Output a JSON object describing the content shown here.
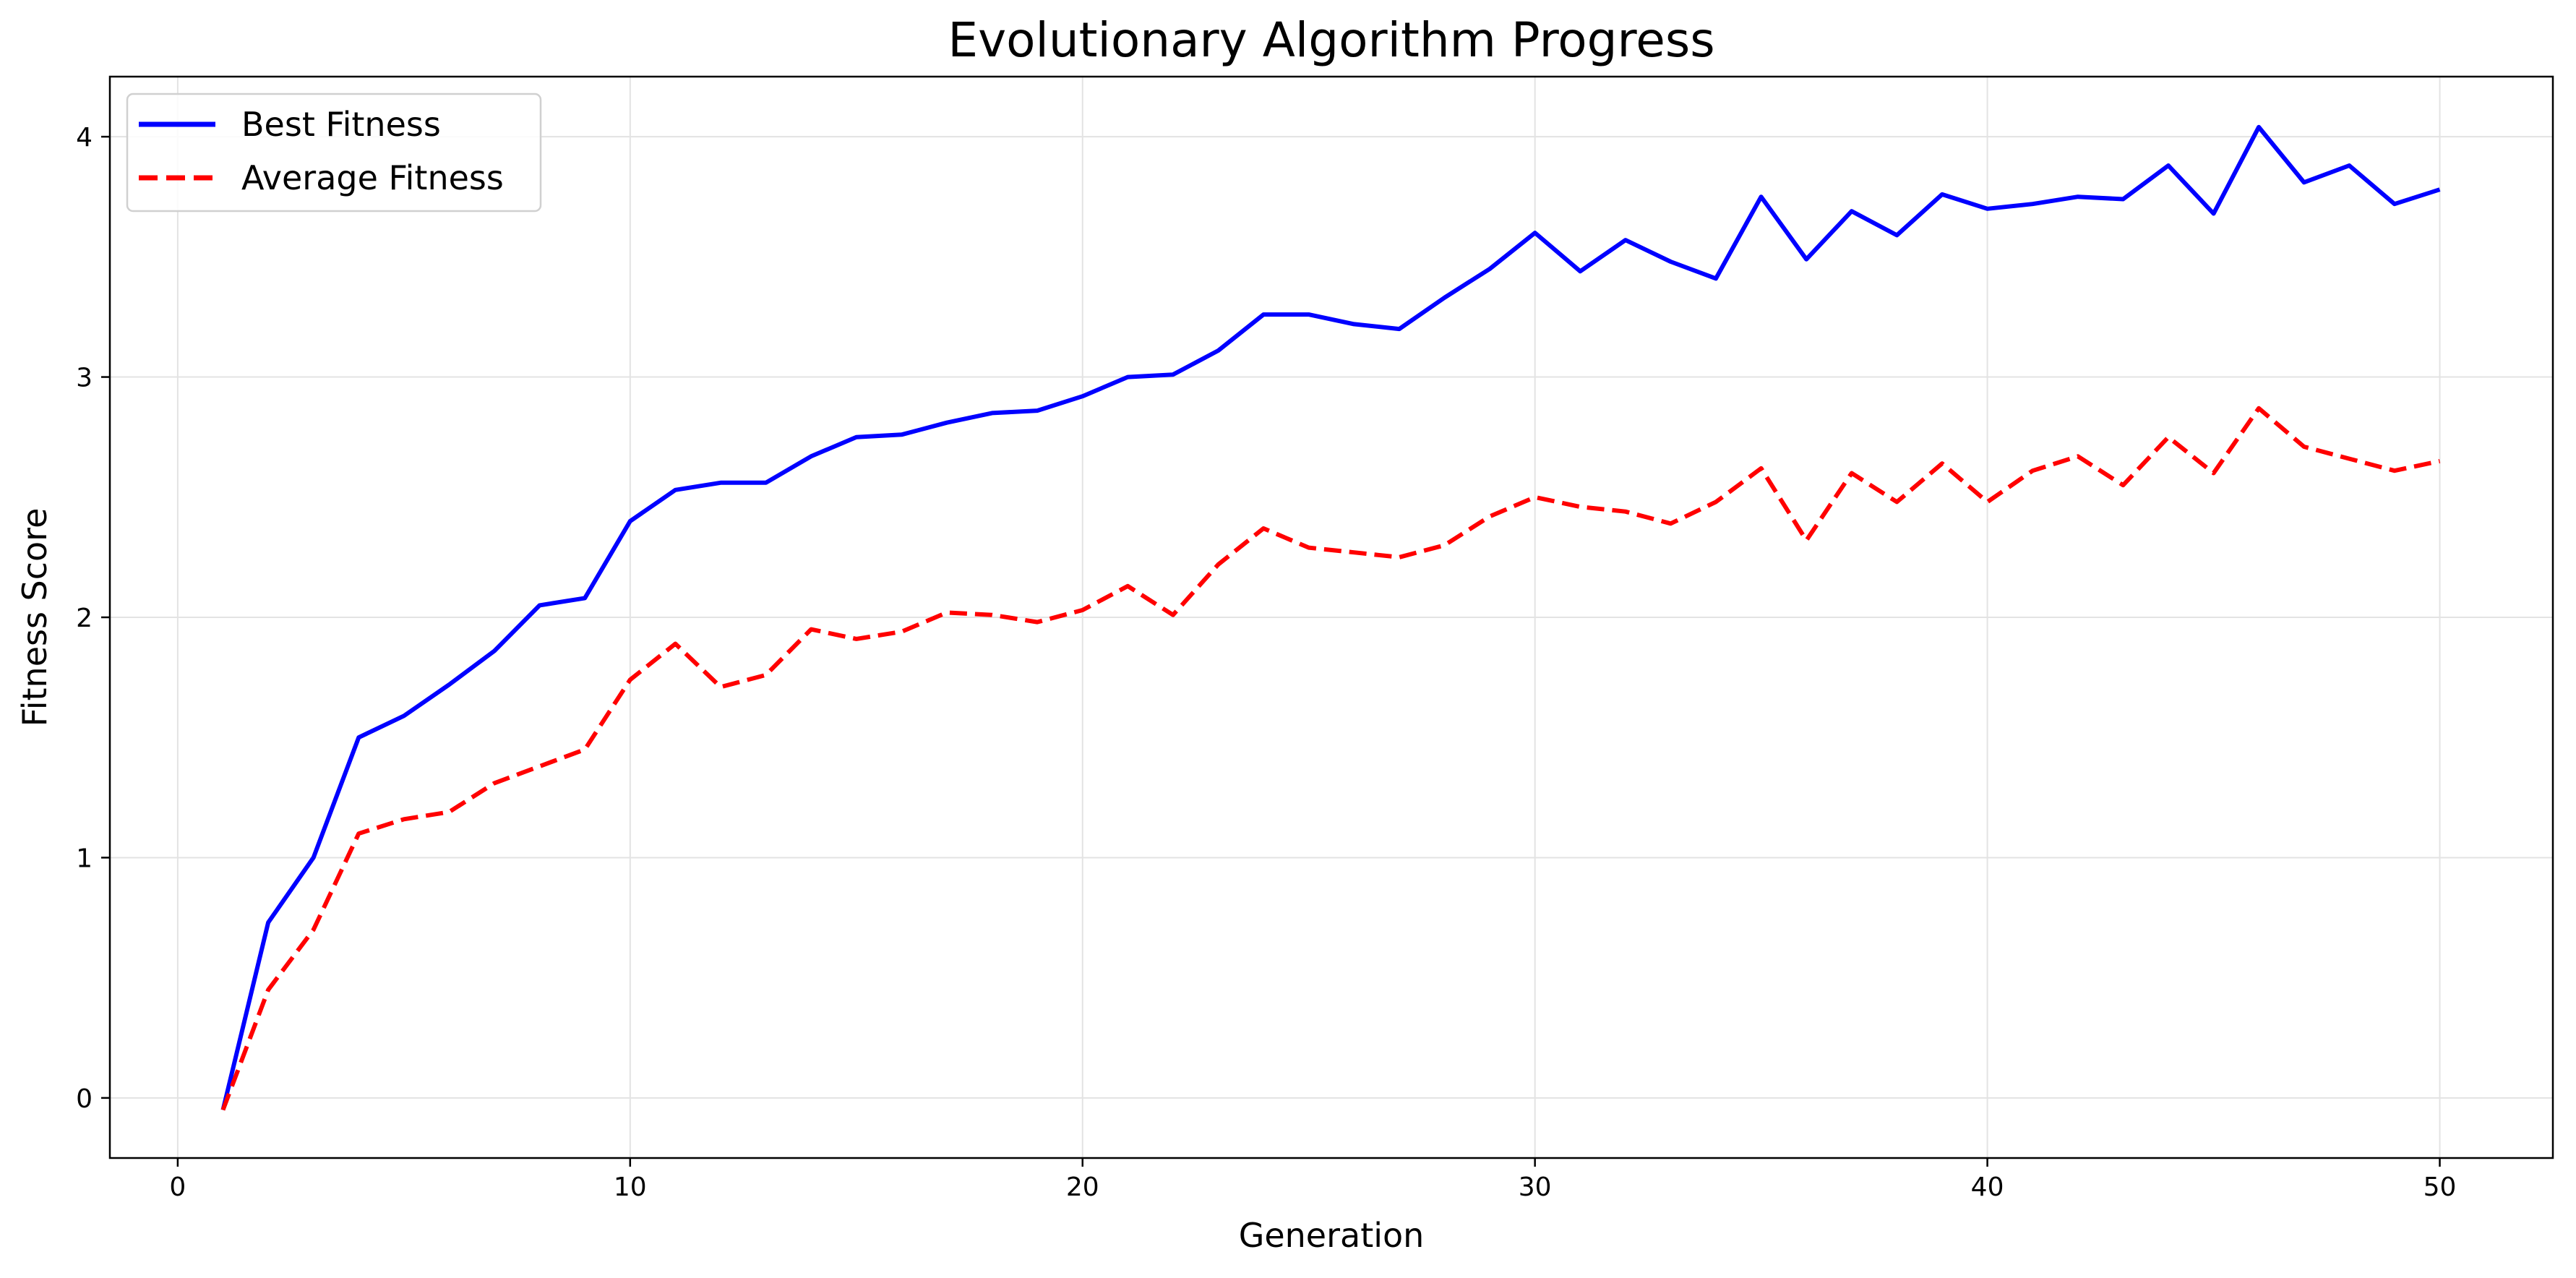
{
  "chart_data": {
    "type": "line",
    "title": "Evolutionary Algorithm Progress",
    "xlabel": "Generation",
    "ylabel": "Fitness Score",
    "xlim": [
      -1.5,
      52.5
    ],
    "ylim": [
      -0.25,
      4.25
    ],
    "xticks": [
      0,
      10,
      20,
      30,
      40,
      50
    ],
    "yticks": [
      0,
      1,
      2,
      3,
      4
    ],
    "grid": true,
    "legend_position": "top-left",
    "x": [
      1,
      2,
      3,
      4,
      5,
      6,
      7,
      8,
      9,
      10,
      11,
      12,
      13,
      14,
      15,
      16,
      17,
      18,
      19,
      20,
      21,
      22,
      23,
      24,
      25,
      26,
      27,
      28,
      29,
      30,
      31,
      32,
      33,
      34,
      35,
      36,
      37,
      38,
      39,
      40,
      41,
      42,
      43,
      44,
      45,
      46,
      47,
      48,
      49,
      50
    ],
    "series": [
      {
        "name": "Best Fitness",
        "color": "#0000ff",
        "style": "solid",
        "values": [
          -0.05,
          0.73,
          1.0,
          1.5,
          1.59,
          1.72,
          1.86,
          2.05,
          2.08,
          2.4,
          2.53,
          2.56,
          2.56,
          2.67,
          2.75,
          2.76,
          2.81,
          2.85,
          2.86,
          2.92,
          3.0,
          3.01,
          3.11,
          3.26,
          3.26,
          3.22,
          3.2,
          3.33,
          3.45,
          3.6,
          3.44,
          3.57,
          3.48,
          3.41,
          3.75,
          3.49,
          3.69,
          3.59,
          3.76,
          3.7,
          3.72,
          3.75,
          3.74,
          3.88,
          3.68,
          4.04,
          3.81,
          3.88,
          3.72,
          3.78
        ]
      },
      {
        "name": "Average Fitness",
        "color": "#ff0000",
        "style": "dashed",
        "values": [
          -0.05,
          0.45,
          0.7,
          1.1,
          1.16,
          1.19,
          1.31,
          1.38,
          1.45,
          1.74,
          1.89,
          1.71,
          1.76,
          1.95,
          1.91,
          1.94,
          2.02,
          2.01,
          1.98,
          2.03,
          2.13,
          2.01,
          2.22,
          2.37,
          2.29,
          2.27,
          2.25,
          2.3,
          2.42,
          2.5,
          2.46,
          2.44,
          2.39,
          2.48,
          2.62,
          2.32,
          2.6,
          2.48,
          2.64,
          2.48,
          2.61,
          2.67,
          2.55,
          2.75,
          2.6,
          2.87,
          2.71,
          2.66,
          2.61,
          2.65
        ]
      }
    ]
  }
}
